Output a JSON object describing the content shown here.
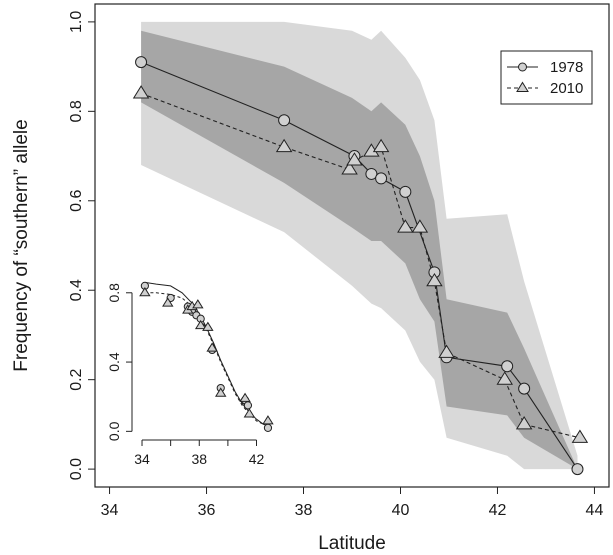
{
  "chart_data": [
    {
      "type": "line",
      "xlabel": "Latitude",
      "ylabel": "Frequency of “southern” allele",
      "xlim": [
        33.7,
        44.3
      ],
      "ylim": [
        -0.04,
        1.04
      ],
      "xticks": [
        34,
        36,
        38,
        40,
        42,
        44
      ],
      "yticks": [
        0.0,
        0.2,
        0.4,
        0.6,
        0.8,
        1.0
      ],
      "xtick_labels": [
        "34",
        "36",
        "38",
        "40",
        "42",
        "44"
      ],
      "ytick_labels": [
        "0.0",
        "0.2",
        "0.4",
        "0.6",
        "0.8",
        "1.0"
      ],
      "legend": {
        "position": "top-right",
        "entries": [
          "1978",
          "2010"
        ]
      },
      "grid": false,
      "series": [
        {
          "name": "1978",
          "marker": "circle",
          "line_style": "solid",
          "x": [
            34.65,
            37.6,
            39.05,
            39.4,
            39.6,
            40.1,
            40.7,
            40.95,
            42.2,
            42.55,
            43.65
          ],
          "y": [
            0.91,
            0.78,
            0.7,
            0.66,
            0.65,
            0.62,
            0.44,
            0.25,
            0.23,
            0.18,
            0.0
          ]
        },
        {
          "name": "2010",
          "marker": "triangle",
          "line_style": "dashed",
          "x": [
            34.65,
            37.6,
            38.95,
            39.05,
            39.4,
            39.6,
            40.1,
            40.4,
            40.7,
            40.95,
            42.15,
            42.55,
            43.7
          ],
          "y": [
            0.84,
            0.72,
            0.67,
            0.69,
            0.71,
            0.72,
            0.54,
            0.54,
            0.42,
            0.26,
            0.2,
            0.1,
            0.07
          ]
        }
      ],
      "bands": [
        {
          "level": "outer",
          "color": "#d9d9d9",
          "x": [
            34.65,
            37.6,
            39.0,
            39.4,
            39.6,
            40.1,
            40.4,
            40.7,
            40.95,
            42.2,
            42.55,
            43.65
          ],
          "lower": [
            0.68,
            0.53,
            0.41,
            0.37,
            0.36,
            0.31,
            0.24,
            0.2,
            0.07,
            0.03,
            0.0,
            0.0
          ],
          "upper": [
            1.0,
            1.0,
            0.98,
            0.96,
            0.98,
            0.92,
            0.87,
            0.78,
            0.56,
            0.57,
            0.42,
            0.03
          ]
        },
        {
          "level": "inner",
          "color": "#a6a6a6",
          "x": [
            34.65,
            37.6,
            39.0,
            39.4,
            39.6,
            40.1,
            40.4,
            40.7,
            40.95,
            42.2,
            42.55,
            43.65
          ],
          "lower": [
            0.82,
            0.64,
            0.54,
            0.51,
            0.51,
            0.46,
            0.38,
            0.33,
            0.14,
            0.12,
            0.07,
            0.0
          ],
          "upper": [
            0.98,
            0.9,
            0.83,
            0.8,
            0.82,
            0.77,
            0.7,
            0.6,
            0.38,
            0.35,
            0.27,
            0.0
          ]
        }
      ]
    },
    {
      "type": "scatter",
      "inset": true,
      "xlim": [
        33.3,
        44.2
      ],
      "ylim": [
        -0.05,
        0.92
      ],
      "xticks": [
        34,
        38,
        42
      ],
      "yticks": [
        0.0,
        0.4,
        0.8
      ],
      "xtick_labels": [
        "34",
        "38",
        "42"
      ],
      "ytick_labels": [
        "0.0",
        "0.4",
        "0.8"
      ],
      "minor_xticks": [
        36,
        40
      ],
      "series": [
        {
          "name": "1978",
          "marker": "circle",
          "line_style": "solid",
          "x": [
            34.2,
            36.0,
            37.2,
            37.5,
            37.8,
            38.1,
            38.9,
            39.5,
            41.2,
            41.4,
            42.8
          ],
          "y": [
            0.84,
            0.77,
            0.72,
            0.69,
            0.67,
            0.65,
            0.47,
            0.25,
            0.18,
            0.15,
            0.02
          ],
          "fit": {
            "x": [
              34.2,
              35.0,
              36.0,
              36.8,
              37.5,
              38.0,
              38.5,
              39.0,
              39.5,
              40.0,
              40.5,
              41.0,
              41.5,
              42.0,
              42.5,
              42.9
            ],
            "y": [
              0.86,
              0.85,
              0.84,
              0.8,
              0.74,
              0.68,
              0.6,
              0.51,
              0.41,
              0.32,
              0.23,
              0.16,
              0.11,
              0.07,
              0.04,
              0.03
            ]
          }
        },
        {
          "name": "2010",
          "marker": "triangle",
          "line_style": "dashed",
          "x": [
            34.2,
            35.8,
            37.2,
            37.5,
            37.9,
            38.1,
            38.6,
            38.9,
            39.5,
            41.2,
            41.5,
            42.8
          ],
          "y": [
            0.8,
            0.74,
            0.7,
            0.72,
            0.73,
            0.61,
            0.6,
            0.48,
            0.22,
            0.19,
            0.1,
            0.06
          ],
          "fit": {
            "x": [
              34.2,
              35.0,
              36.0,
              36.8,
              37.5,
              38.0,
              38.5,
              39.0,
              39.5,
              40.0,
              40.5,
              41.0,
              41.5,
              42.0,
              42.5,
              42.9
            ],
            "y": [
              0.8,
              0.8,
              0.79,
              0.77,
              0.72,
              0.67,
              0.59,
              0.5,
              0.4,
              0.31,
              0.22,
              0.15,
              0.1,
              0.06,
              0.04,
              0.03
            ]
          }
        }
      ]
    }
  ]
}
